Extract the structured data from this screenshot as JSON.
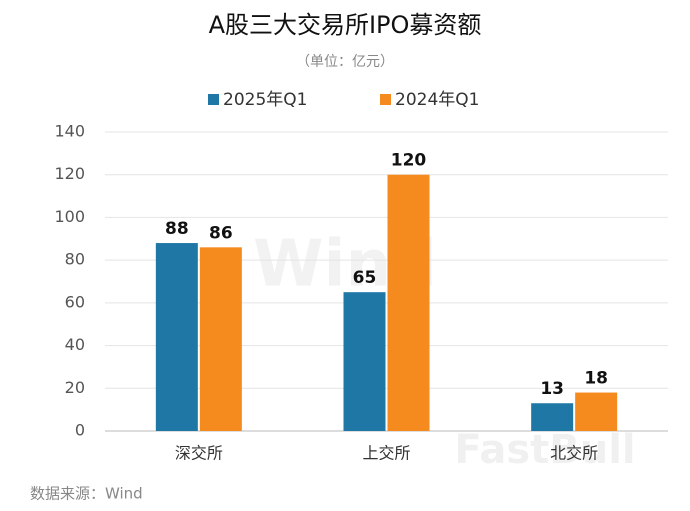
{
  "chart_data": {
    "type": "bar",
    "title": "A股三大交易所IPO募资额",
    "subtitle": "（单位：亿元）",
    "categories": [
      "深交所",
      "上交所",
      "北交所"
    ],
    "series": [
      {
        "name": "2025年Q1",
        "color": "#1f77a6",
        "values": [
          88,
          65,
          13
        ]
      },
      {
        "name": "2024年Q1",
        "color": "#f58a1f",
        "values": [
          86,
          120,
          18
        ]
      }
    ],
    "ylim": [
      0,
      140
    ],
    "yticks": [
      0,
      20,
      40,
      60,
      80,
      100,
      120,
      140
    ],
    "grid": true,
    "source": "数据来源：Wind",
    "watermarks": [
      "Wind",
      "FastBull"
    ]
  }
}
